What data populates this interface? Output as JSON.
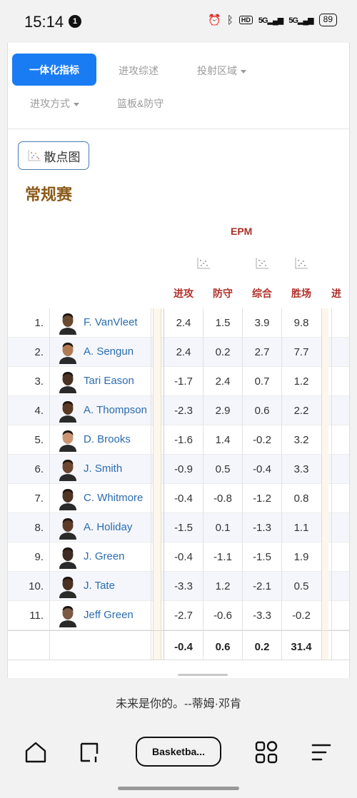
{
  "status_bar": {
    "time": "15:14",
    "notification_count": "1",
    "hd_tag": "HD",
    "network": "5G",
    "network2": "5G",
    "battery": "89"
  },
  "tabs": {
    "active": "一体化指标",
    "offense_summary": "进攻综述",
    "shot_zone": "投射区域",
    "offense_type": "进攻方式",
    "rebound_defense": "篮板&防守"
  },
  "scatter_button": "散点图",
  "section_title": "常规赛",
  "group_label": "EPM",
  "columns": [
    "进攻",
    "防守",
    "综合",
    "胜场",
    "进"
  ],
  "players": [
    {
      "rank": "1.",
      "name": "F. VanVleet",
      "off": "2.4",
      "def": "1.5",
      "tot": "3.9",
      "wins": "9.8"
    },
    {
      "rank": "2.",
      "name": "A. Sengun",
      "off": "2.4",
      "def": "0.2",
      "tot": "2.7",
      "wins": "7.7"
    },
    {
      "rank": "3.",
      "name": "Tari Eason",
      "off": "-1.7",
      "def": "2.4",
      "tot": "0.7",
      "wins": "1.2"
    },
    {
      "rank": "4.",
      "name": "A. Thompson",
      "off": "-2.3",
      "def": "2.9",
      "tot": "0.6",
      "wins": "2.2"
    },
    {
      "rank": "5.",
      "name": "D. Brooks",
      "off": "-1.6",
      "def": "1.4",
      "tot": "-0.2",
      "wins": "3.2"
    },
    {
      "rank": "6.",
      "name": "J. Smith",
      "off": "-0.9",
      "def": "0.5",
      "tot": "-0.4",
      "wins": "3.3"
    },
    {
      "rank": "7.",
      "name": "C. Whitmore",
      "off": "-0.4",
      "def": "-0.8",
      "tot": "-1.2",
      "wins": "0.8"
    },
    {
      "rank": "8.",
      "name": "A. Holiday",
      "off": "-1.5",
      "def": "0.1",
      "tot": "-1.3",
      "wins": "1.1"
    },
    {
      "rank": "9.",
      "name": "J. Green",
      "off": "-0.4",
      "def": "-1.1",
      "tot": "-1.5",
      "wins": "1.9"
    },
    {
      "rank": "10.",
      "name": "J. Tate",
      "off": "-3.3",
      "def": "1.2",
      "tot": "-2.1",
      "wins": "0.5"
    },
    {
      "rank": "11.",
      "name": "Jeff Green",
      "off": "-2.7",
      "def": "-0.6",
      "tot": "-3.3",
      "wins": "-0.2"
    }
  ],
  "totals": {
    "off": "-0.4",
    "def": "0.6",
    "tot": "0.2",
    "wins": "31.4"
  },
  "quote": "未来是你的。--蒂姆·邓肯",
  "url_pill": "Basketba...",
  "colors": {
    "accent": "#1a7cf3",
    "player_link": "#2b6cb0",
    "header_red": "#b0302a",
    "section_brown": "#8b5a1a"
  }
}
